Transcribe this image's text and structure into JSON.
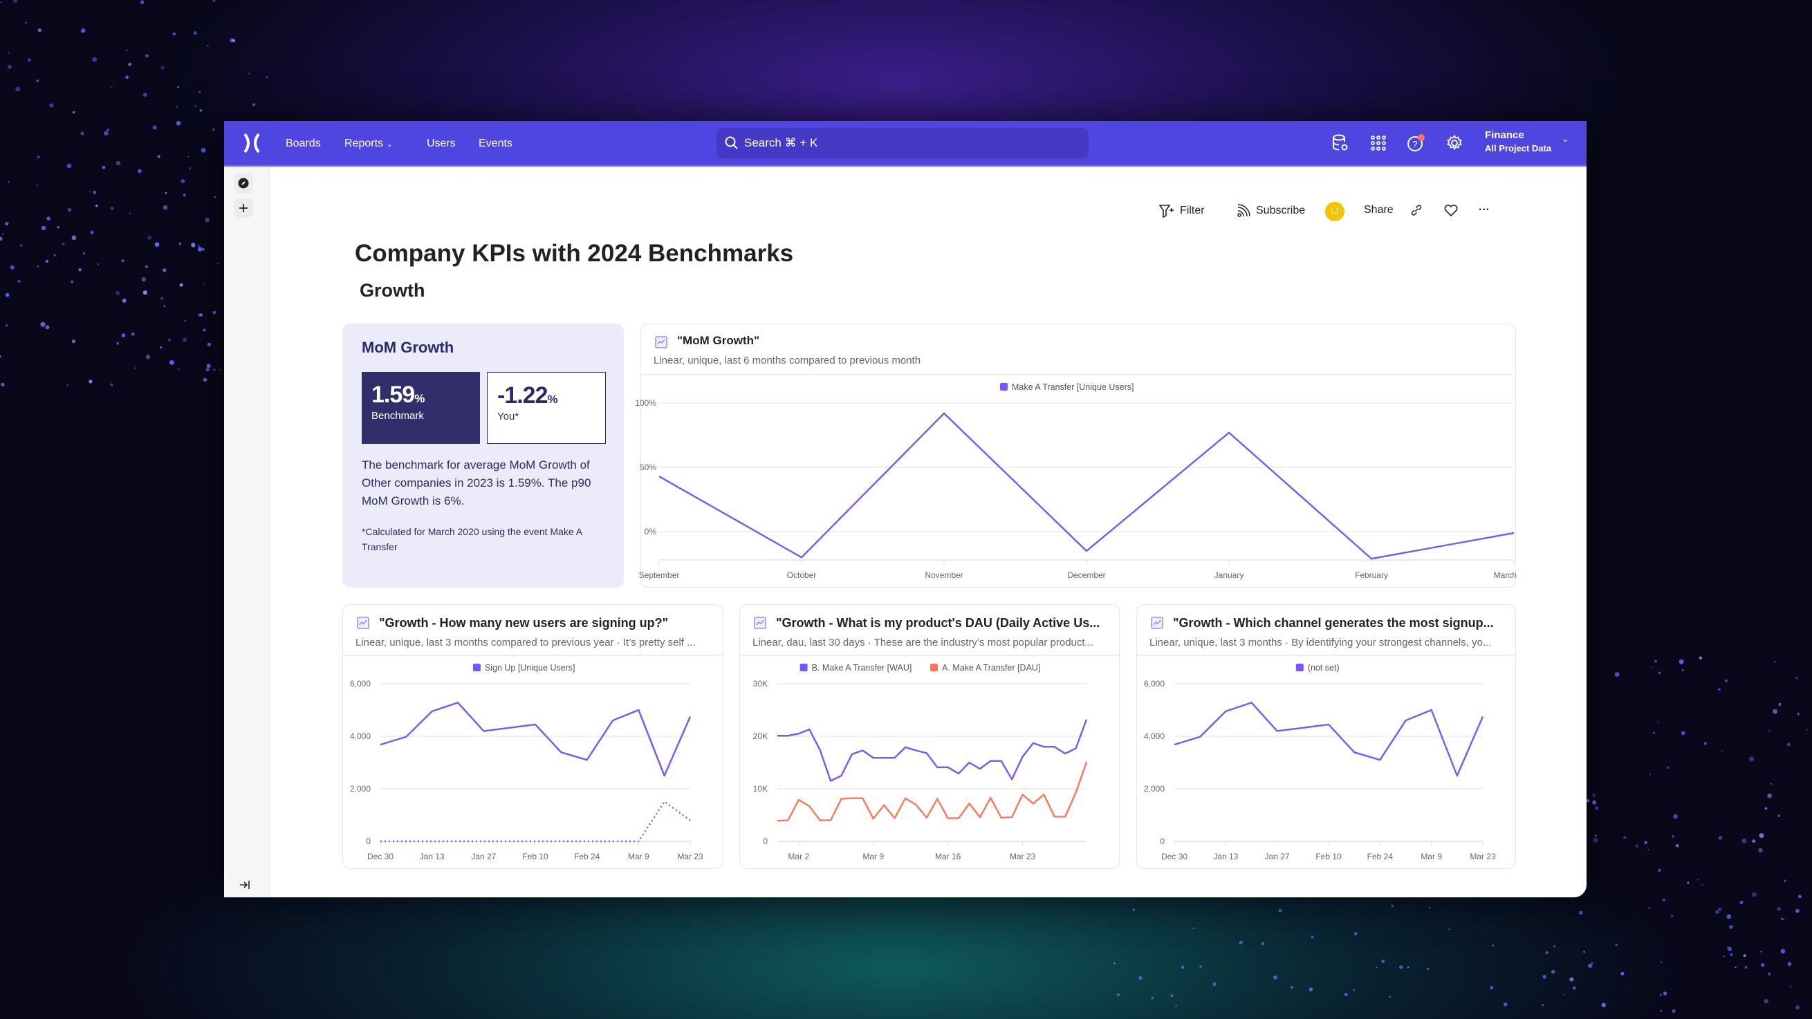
{
  "nav": {
    "logo": "mixpanel-logo",
    "items": [
      {
        "label": "Boards"
      },
      {
        "label": "Reports",
        "has_dropdown": true
      },
      {
        "label": "Users"
      },
      {
        "label": "Events"
      }
    ],
    "search": {
      "placeholder": "Search ⌘ + K"
    },
    "icons": [
      "data-settings-icon",
      "apps-grid-icon",
      "help-icon",
      "settings-gear-icon"
    ],
    "project": {
      "name": "Finance",
      "scope": "All Project Data"
    },
    "help_notification": true
  },
  "sidebar": {
    "icons": [
      "compass-icon",
      "plus-icon",
      "collapse-sidebar-icon"
    ]
  },
  "toolbar": {
    "filter": "Filter",
    "subscribe": "Subscribe",
    "avatar": "LJ",
    "share": "Share"
  },
  "page": {
    "title": "Company KPIs with 2024 Benchmarks",
    "section": "Growth"
  },
  "benchmark": {
    "title": "MoM Growth",
    "benchmark_value": "1.59",
    "benchmark_label": "Benchmark",
    "you_value": "-1.22",
    "you_label": "You*",
    "unit": "%",
    "description": "The benchmark for average MoM Growth of Other companies in 2023 is 1.59%. The p90 MoM Growth is 6%.",
    "note": "*Calculated for March 2020 using the event Make A Transfer"
  },
  "colors": {
    "header": "#4f45e0",
    "accent": "#7856ff",
    "orange": "#ff7557",
    "benchmark_dark": "#312e6b",
    "benchmark_bg": "#ecebfa",
    "avatar": "#f5c400",
    "notification": "#ff7557"
  },
  "chart_data": [
    {
      "type": "line",
      "title": "\"MoM Growth\"",
      "subtitle": "Linear, unique, last 6 months compared to previous month",
      "x": [
        "September",
        "October",
        "November",
        "December",
        "January",
        "February",
        "March"
      ],
      "yticks": [
        "100%",
        "50%",
        "0%"
      ],
      "ytick_values": [
        100,
        50,
        0
      ],
      "ylim": [
        -22,
        100
      ],
      "grid": true,
      "legend": "top",
      "series": [
        {
          "name": "Make A Transfer [Unique Users]",
          "color": "#7856ff",
          "values": [
            43,
            -20,
            92,
            -15,
            77,
            -21,
            -1
          ]
        }
      ]
    },
    {
      "type": "line",
      "title": "\"Growth - How many new users are signing up?\"",
      "subtitle": "Linear, unique, last 3 months compared to previous year · It’s pretty self ...",
      "x": [
        "Dec 30",
        "Jan 6",
        "Jan 13",
        "Jan 20",
        "Jan 27",
        "Feb 3",
        "Feb 10",
        "Feb 17",
        "Feb 24",
        "Mar 2",
        "Mar 9",
        "Mar 16",
        "Mar 23"
      ],
      "xticks": [
        "Dec 30",
        "Jan 13",
        "Jan 27",
        "Feb 10",
        "Feb 24",
        "Mar 9",
        "Mar 23"
      ],
      "yticks": [
        "6,000",
        "4,000",
        "2,000",
        "0"
      ],
      "ytick_values": [
        6000,
        4000,
        2000,
        0
      ],
      "ylim": [
        0,
        6000
      ],
      "grid": true,
      "legend": "top",
      "series": [
        {
          "name": "Sign Up [Unique Users]",
          "color": "#7856ff",
          "values": [
            3680,
            3980,
            4950,
            5280,
            4200,
            4320,
            4450,
            3390,
            3100,
            4600,
            5000,
            2500,
            4750
          ]
        },
        {
          "color": "#7856ff",
          "dashed": true,
          "values": [
            0,
            0,
            0,
            0,
            0,
            0,
            0,
            0,
            0,
            0,
            0,
            1510,
            800
          ]
        }
      ]
    },
    {
      "type": "line",
      "title": "\"Growth - What is my product's DAU (Daily Active Us...",
      "subtitle": "Linear, dau, last 30 days · These are the industry’s most popular product...",
      "x": [
        "Feb 28",
        "Mar 1",
        "Mar 2",
        "Mar 3",
        "Mar 4",
        "Mar 5",
        "Mar 6",
        "Mar 7",
        "Mar 8",
        "Mar 9",
        "Mar 10",
        "Mar 11",
        "Mar 12",
        "Mar 13",
        "Mar 14",
        "Mar 15",
        "Mar 16",
        "Mar 17",
        "Mar 18",
        "Mar 19",
        "Mar 20",
        "Mar 21",
        "Mar 22",
        "Mar 23",
        "Mar 24",
        "Mar 25",
        "Mar 26",
        "Mar 27",
        "Mar 28",
        "Mar 29"
      ],
      "xticks": [
        "Mar 2",
        "Mar 9",
        "Mar 16",
        "Mar 23"
      ],
      "yticks": [
        "30K",
        "20K",
        "10K",
        "0"
      ],
      "ytick_values": [
        30000,
        20000,
        10000,
        0
      ],
      "ylim": [
        0,
        30000
      ],
      "grid": true,
      "legend": "top",
      "series": [
        {
          "name": "B. Make A Transfer [WAU]",
          "color": "#7856ff",
          "values": [
            20100,
            20100,
            20500,
            21300,
            17400,
            11500,
            12500,
            16600,
            17300,
            15900,
            15900,
            15900,
            17900,
            17300,
            16800,
            14100,
            14100,
            12900,
            15000,
            13800,
            15300,
            15300,
            11800,
            16100,
            18700,
            18000,
            18000,
            16700,
            17700,
            23200
          ]
        },
        {
          "name": "A. Make A Transfer [DAU]",
          "color": "#ff7557",
          "values": [
            3900,
            4000,
            7900,
            6700,
            4000,
            4000,
            8100,
            8200,
            8200,
            4300,
            6900,
            4400,
            8200,
            7000,
            4500,
            8100,
            4400,
            4400,
            7200,
            4600,
            8300,
            4500,
            4600,
            8900,
            7200,
            8900,
            4700,
            4700,
            9300,
            15100
          ]
        }
      ]
    },
    {
      "type": "line",
      "title": "\"Growth - Which channel generates the most signup...",
      "subtitle": "Linear, unique, last 3 months · By identifying your strongest channels, yo...",
      "x": [
        "Dec 30",
        "Jan 6",
        "Jan 13",
        "Jan 20",
        "Jan 27",
        "Feb 3",
        "Feb 10",
        "Feb 17",
        "Feb 24",
        "Mar 2",
        "Mar 9",
        "Mar 16",
        "Mar 23"
      ],
      "xticks": [
        "Dec 30",
        "Jan 13",
        "Jan 27",
        "Feb 10",
        "Feb 24",
        "Mar 9",
        "Mar 23"
      ],
      "yticks": [
        "6,000",
        "4,000",
        "2,000",
        "0"
      ],
      "ytick_values": [
        6000,
        4000,
        2000,
        0
      ],
      "ylim": [
        0,
        6000
      ],
      "grid": true,
      "legend": "top",
      "series": [
        {
          "name": "(not set)",
          "color": "#7856ff",
          "values": [
            3680,
            3980,
            4950,
            5280,
            4200,
            4320,
            4450,
            3390,
            3100,
            4600,
            5000,
            2500,
            4750
          ]
        }
      ]
    }
  ]
}
